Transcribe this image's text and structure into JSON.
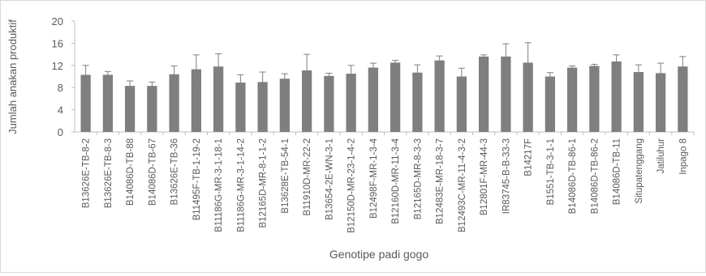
{
  "chart_data": {
    "type": "bar",
    "title": "",
    "xlabel": "Genotipe padi gogo",
    "ylabel": "Jumlah anakan produktif",
    "ylim": [
      0,
      20
    ],
    "yticks": [
      0,
      4,
      8,
      12,
      16,
      20
    ],
    "grid": false,
    "error_bars": true,
    "bar_color": "#7f7f7f",
    "categories": [
      "B13626E-TB-8-2",
      "B13626E-TB-8-3",
      "B14086D-TB-88",
      "B14086D-TB-67",
      "B13626E-TB-36",
      "B11495F-TB-1-19-2",
      "B11186G-MR-3-1-18-1",
      "B11186G-MR-3-1-14-2",
      "B12165D-MR-8-1-1-2",
      "B13628E-TB-54-1",
      "B11910D-MR-22-2",
      "B13654-2E-WN-3-1",
      "B12150D-MR-23-1-4-2",
      "B12498F-MR-1-3-4",
      "B12160D-MR-11-3-4",
      "B12165D-MR-8-3-3",
      "B12483E-MR-18-3-7",
      "B12493C-MR-11-4-3-2",
      "B12801F-MR-44-3",
      "IR83745-B-B-33-3",
      "B14217F",
      "B1551-TB-3-1-1",
      "B14086D-TB-86-1",
      "B14086D-TB-86-2",
      "B14086D-TB-11",
      "Situpatenggang",
      "Jatiluhur",
      "Inpago 8"
    ],
    "values": [
      10.3,
      10.3,
      8.3,
      8.3,
      10.4,
      11.3,
      11.8,
      8.9,
      9.0,
      9.6,
      11.1,
      10.1,
      10.5,
      11.6,
      12.5,
      10.7,
      12.9,
      10.0,
      13.6,
      13.6,
      12.5,
      10.0,
      11.6,
      11.9,
      12.7,
      10.8,
      10.6,
      11.8
    ],
    "errors": [
      1.7,
      0.6,
      0.9,
      0.7,
      1.5,
      2.6,
      2.3,
      1.4,
      1.8,
      0.9,
      2.9,
      0.5,
      1.5,
      0.8,
      0.4,
      1.4,
      0.8,
      1.5,
      0.3,
      2.3,
      3.6,
      0.7,
      0.3,
      0.3,
      1.2,
      1.3,
      1.8,
      1.8
    ]
  }
}
